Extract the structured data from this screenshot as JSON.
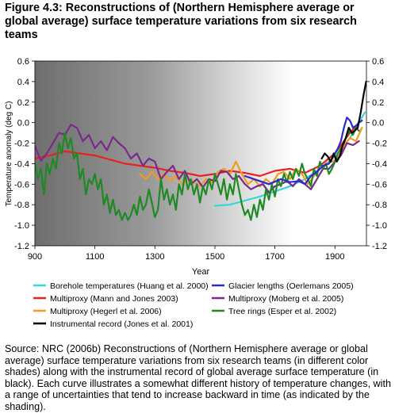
{
  "figure": {
    "title": "Figure 4.3: Reconstructions of (Northern Hemisphere average or global average) surface temperature variations from six research teams",
    "caption": "Source: NRC (2006b) Reconstructions of (Northern Hemisphere average or global average) surface temperature variations from six research teams (in different color shades) along with the instrumental record of global average surface temperature (in black). Each curve illustrates a somewhat different history of temperature changes, with a range of uncertainties that tend to increase backward in time (as indicated by the shading)."
  },
  "chart_data": {
    "type": "line",
    "title": "",
    "xlabel": "Year",
    "ylabel": "Temperature anomaly (deg C)",
    "xlim": [
      900,
      2005
    ],
    "ylim": [
      -1.2,
      0.6
    ],
    "x_ticks": [
      "900",
      "1100",
      "1300",
      "1500",
      "1700",
      "1900"
    ],
    "y_ticks": [
      "0.6",
      "0.4",
      "0.2",
      "0.0",
      "-0.2",
      "-0.4",
      "-0.6",
      "-0.8",
      "-1.0",
      "-1.2"
    ],
    "y_tick_values": [
      0.6,
      0.4,
      0.2,
      0.0,
      -0.2,
      -0.4,
      -0.6,
      -0.8,
      -1.0,
      -1.2
    ],
    "x_tick_values": [
      900,
      1100,
      1300,
      1500,
      1700,
      1900
    ],
    "background_shading": "uncertainty gradient from dark gray (900) to white (about 1750)",
    "legend_placement": "below plot, two columns",
    "series": [
      {
        "name": "Borehole temperatures (Huang et al. 2000)",
        "color": "#33d6dd",
        "points": [
          [
            1500,
            -0.81
          ],
          [
            1550,
            -0.8
          ],
          [
            1600,
            -0.76
          ],
          [
            1650,
            -0.72
          ],
          [
            1700,
            -0.67
          ],
          [
            1750,
            -0.62
          ],
          [
            1800,
            -0.55
          ],
          [
            1850,
            -0.45
          ],
          [
            1900,
            -0.33
          ],
          [
            1950,
            -0.15
          ],
          [
            2000,
            0.1
          ]
        ]
      },
      {
        "name": "Glacier lengths (Oerlemans 2005)",
        "color": "#2a2acc",
        "points": [
          [
            1600,
            -0.52
          ],
          [
            1640,
            -0.56
          ],
          [
            1680,
            -0.6
          ],
          [
            1720,
            -0.55
          ],
          [
            1750,
            -0.58
          ],
          [
            1780,
            -0.57
          ],
          [
            1800,
            -0.6
          ],
          [
            1820,
            -0.52
          ],
          [
            1840,
            -0.48
          ],
          [
            1860,
            -0.42
          ],
          [
            1880,
            -0.4
          ],
          [
            1900,
            -0.3
          ],
          [
            1910,
            -0.25
          ],
          [
            1920,
            -0.18
          ],
          [
            1930,
            -0.05
          ],
          [
            1940,
            0.05
          ],
          [
            1950,
            0.02
          ],
          [
            1960,
            -0.05
          ],
          [
            1970,
            -0.03
          ],
          [
            1980,
            0.0
          ],
          [
            1990,
            0.02
          ]
        ]
      },
      {
        "name": "Multiproxy (Mann and Jones 2003)",
        "color": "#e8231f",
        "points": [
          [
            900,
            -0.35
          ],
          [
            950,
            -0.32
          ],
          [
            1000,
            -0.28
          ],
          [
            1050,
            -0.3
          ],
          [
            1100,
            -0.32
          ],
          [
            1150,
            -0.36
          ],
          [
            1200,
            -0.4
          ],
          [
            1250,
            -0.42
          ],
          [
            1300,
            -0.44
          ],
          [
            1350,
            -0.47
          ],
          [
            1400,
            -0.49
          ],
          [
            1450,
            -0.52
          ],
          [
            1500,
            -0.5
          ],
          [
            1550,
            -0.47
          ],
          [
            1600,
            -0.49
          ],
          [
            1650,
            -0.52
          ],
          [
            1700,
            -0.47
          ],
          [
            1750,
            -0.45
          ],
          [
            1800,
            -0.49
          ],
          [
            1850,
            -0.42
          ],
          [
            1900,
            -0.3
          ],
          [
            1950,
            -0.1
          ],
          [
            1980,
            0.0
          ]
        ]
      },
      {
        "name": "Glacier lengths (Oerlemans 2005)",
        "color": "#2a2acc",
        "points": []
      },
      {
        "name": "Multiproxy (Moberg et al. 2005)",
        "color": "#7a2a8a",
        "points": [
          [
            900,
            -0.23
          ],
          [
            920,
            -0.37
          ],
          [
            940,
            -0.3
          ],
          [
            960,
            -0.2
          ],
          [
            980,
            -0.1
          ],
          [
            1000,
            -0.12
          ],
          [
            1020,
            -0.02
          ],
          [
            1040,
            -0.05
          ],
          [
            1060,
            -0.18
          ],
          [
            1080,
            -0.12
          ],
          [
            1100,
            -0.25
          ],
          [
            1120,
            -0.18
          ],
          [
            1140,
            -0.27
          ],
          [
            1160,
            -0.14
          ],
          [
            1180,
            -0.2
          ],
          [
            1200,
            -0.25
          ],
          [
            1220,
            -0.35
          ],
          [
            1240,
            -0.3
          ],
          [
            1260,
            -0.42
          ],
          [
            1280,
            -0.35
          ],
          [
            1300,
            -0.38
          ],
          [
            1320,
            -0.55
          ],
          [
            1340,
            -0.48
          ],
          [
            1360,
            -0.42
          ],
          [
            1380,
            -0.55
          ],
          [
            1400,
            -0.47
          ],
          [
            1420,
            -0.6
          ],
          [
            1440,
            -0.55
          ],
          [
            1460,
            -0.63
          ],
          [
            1480,
            -0.55
          ],
          [
            1500,
            -0.57
          ],
          [
            1520,
            -0.47
          ],
          [
            1540,
            -0.48
          ],
          [
            1560,
            -0.55
          ],
          [
            1580,
            -0.52
          ],
          [
            1600,
            -0.6
          ],
          [
            1620,
            -0.65
          ],
          [
            1640,
            -0.62
          ],
          [
            1660,
            -0.6
          ],
          [
            1680,
            -0.68
          ],
          [
            1700,
            -0.62
          ],
          [
            1720,
            -0.6
          ],
          [
            1740,
            -0.57
          ],
          [
            1760,
            -0.62
          ],
          [
            1780,
            -0.55
          ],
          [
            1800,
            -0.6
          ],
          [
            1820,
            -0.65
          ],
          [
            1840,
            -0.55
          ],
          [
            1860,
            -0.45
          ],
          [
            1880,
            -0.45
          ],
          [
            1900,
            -0.38
          ],
          [
            1920,
            -0.32
          ],
          [
            1940,
            -0.2
          ],
          [
            1960,
            -0.22
          ],
          [
            1980,
            -0.18
          ]
        ]
      },
      {
        "name": "Multiproxy (Hegerl et al. 2006)",
        "color": "#f39a1f",
        "points": [
          [
            1250,
            -0.5
          ],
          [
            1270,
            -0.55
          ],
          [
            1290,
            -0.48
          ],
          [
            1310,
            -0.55
          ],
          [
            1330,
            -0.5
          ],
          [
            1350,
            -0.57
          ],
          [
            1370,
            -0.52
          ],
          [
            1390,
            -0.6
          ],
          [
            1410,
            -0.55
          ],
          [
            1430,
            -0.58
          ],
          [
            1450,
            -0.62
          ],
          [
            1470,
            -0.55
          ],
          [
            1490,
            -0.58
          ],
          [
            1510,
            -0.48
          ],
          [
            1530,
            -0.45
          ],
          [
            1550,
            -0.5
          ],
          [
            1570,
            -0.38
          ],
          [
            1590,
            -0.5
          ],
          [
            1610,
            -0.6
          ],
          [
            1630,
            -0.55
          ],
          [
            1650,
            -0.62
          ],
          [
            1670,
            -0.55
          ],
          [
            1690,
            -0.6
          ],
          [
            1710,
            -0.5
          ],
          [
            1730,
            -0.48
          ],
          [
            1750,
            -0.55
          ],
          [
            1770,
            -0.45
          ],
          [
            1790,
            -0.5
          ],
          [
            1810,
            -0.6
          ],
          [
            1830,
            -0.52
          ],
          [
            1850,
            -0.45
          ],
          [
            1870,
            -0.4
          ],
          [
            1890,
            -0.38
          ],
          [
            1910,
            -0.35
          ],
          [
            1930,
            -0.22
          ],
          [
            1950,
            -0.15
          ],
          [
            1970,
            -0.18
          ],
          [
            1990,
            -0.05
          ]
        ]
      },
      {
        "name": "Tree rings (Esper et al. 2002)",
        "color": "#1f8a23",
        "points": [
          [
            900,
            -0.4
          ],
          [
            910,
            -0.55
          ],
          [
            920,
            -0.45
          ],
          [
            930,
            -0.7
          ],
          [
            940,
            -0.4
          ],
          [
            950,
            -0.5
          ],
          [
            960,
            -0.35
          ],
          [
            970,
            -0.45
          ],
          [
            980,
            -0.2
          ],
          [
            990,
            -0.3
          ],
          [
            1000,
            -0.1
          ],
          [
            1010,
            -0.25
          ],
          [
            1020,
            -0.15
          ],
          [
            1030,
            -0.35
          ],
          [
            1040,
            -0.3
          ],
          [
            1050,
            -0.55
          ],
          [
            1060,
            -0.45
          ],
          [
            1070,
            -0.7
          ],
          [
            1080,
            -0.55
          ],
          [
            1090,
            -0.6
          ],
          [
            1100,
            -0.5
          ],
          [
            1110,
            -0.65
          ],
          [
            1120,
            -0.55
          ],
          [
            1130,
            -0.8
          ],
          [
            1140,
            -0.7
          ],
          [
            1150,
            -0.88
          ],
          [
            1160,
            -0.75
          ],
          [
            1170,
            -0.9
          ],
          [
            1180,
            -0.85
          ],
          [
            1190,
            -0.95
          ],
          [
            1200,
            -0.88
          ],
          [
            1210,
            -0.95
          ],
          [
            1220,
            -0.9
          ],
          [
            1230,
            -0.8
          ],
          [
            1240,
            -0.9
          ],
          [
            1250,
            -0.72
          ],
          [
            1260,
            -0.85
          ],
          [
            1270,
            -0.8
          ],
          [
            1280,
            -0.65
          ],
          [
            1290,
            -0.78
          ],
          [
            1300,
            -0.92
          ],
          [
            1310,
            -0.85
          ],
          [
            1320,
            -0.55
          ],
          [
            1330,
            -0.75
          ],
          [
            1340,
            -0.65
          ],
          [
            1350,
            -0.8
          ],
          [
            1360,
            -0.7
          ],
          [
            1370,
            -0.85
          ],
          [
            1380,
            -0.6
          ],
          [
            1390,
            -0.7
          ],
          [
            1400,
            -0.5
          ],
          [
            1410,
            -0.65
          ],
          [
            1420,
            -0.55
          ],
          [
            1430,
            -0.7
          ],
          [
            1440,
            -0.6
          ],
          [
            1450,
            -0.78
          ],
          [
            1460,
            -0.62
          ],
          [
            1470,
            -0.7
          ],
          [
            1480,
            -0.55
          ],
          [
            1490,
            -0.65
          ],
          [
            1500,
            -0.5
          ],
          [
            1510,
            -0.6
          ],
          [
            1520,
            -0.7
          ],
          [
            1530,
            -0.55
          ],
          [
            1540,
            -0.75
          ],
          [
            1550,
            -0.6
          ],
          [
            1560,
            -0.7
          ],
          [
            1570,
            -0.5
          ],
          [
            1580,
            -0.65
          ],
          [
            1590,
            -0.8
          ],
          [
            1600,
            -0.9
          ],
          [
            1610,
            -0.85
          ],
          [
            1620,
            -0.95
          ],
          [
            1630,
            -0.8
          ],
          [
            1640,
            -0.92
          ],
          [
            1650,
            -0.75
          ],
          [
            1660,
            -0.85
          ],
          [
            1670,
            -0.65
          ],
          [
            1680,
            -0.75
          ],
          [
            1690,
            -0.6
          ],
          [
            1700,
            -0.72
          ],
          [
            1710,
            -0.55
          ],
          [
            1720,
            -0.62
          ],
          [
            1730,
            -0.5
          ],
          [
            1740,
            -0.58
          ],
          [
            1750,
            -0.48
          ],
          [
            1760,
            -0.55
          ],
          [
            1770,
            -0.45
          ],
          [
            1780,
            -0.52
          ],
          [
            1790,
            -0.4
          ],
          [
            1800,
            -0.5
          ],
          [
            1810,
            -0.55
          ],
          [
            1820,
            -0.62
          ],
          [
            1830,
            -0.45
          ],
          [
            1840,
            -0.52
          ],
          [
            1850,
            -0.38
          ],
          [
            1860,
            -0.45
          ],
          [
            1870,
            -0.4
          ],
          [
            1880,
            -0.5
          ],
          [
            1890,
            -0.45
          ],
          [
            1900,
            -0.38
          ],
          [
            1910,
            -0.3
          ],
          [
            1920,
            -0.25
          ],
          [
            1930,
            -0.2
          ],
          [
            1940,
            -0.12
          ],
          [
            1950,
            -0.08
          ],
          [
            1960,
            -0.12
          ],
          [
            1970,
            -0.05
          ],
          [
            1980,
            -0.08
          ]
        ]
      },
      {
        "name": "Instrumental record (Jones et al. 2001)",
        "color": "#000000",
        "points": [
          [
            1856,
            -0.35
          ],
          [
            1866,
            -0.3
          ],
          [
            1876,
            -0.33
          ],
          [
            1886,
            -0.38
          ],
          [
            1896,
            -0.3
          ],
          [
            1906,
            -0.38
          ],
          [
            1916,
            -0.33
          ],
          [
            1926,
            -0.22
          ],
          [
            1936,
            -0.15
          ],
          [
            1946,
            -0.05
          ],
          [
            1956,
            -0.1
          ],
          [
            1966,
            -0.08
          ],
          [
            1976,
            -0.05
          ],
          [
            1986,
            0.1
          ],
          [
            1996,
            0.28
          ],
          [
            2004,
            0.4
          ]
        ]
      }
    ]
  },
  "legend": {
    "left": [
      {
        "label": "Borehole temperatures (Huang et al. 2000)",
        "color": "#33d6dd"
      },
      {
        "label": "Multiproxy (Mann and Jones 2003)",
        "color": "#e8231f"
      },
      {
        "label": "Multiproxy (Hegerl et al. 2006)",
        "color": "#f39a1f"
      },
      {
        "label": "Instrumental record (Jones et al. 2001)",
        "color": "#000000"
      }
    ],
    "right": [
      {
        "label": "Glacier lengths (Oerlemans 2005)",
        "color": "#2a2acc"
      },
      {
        "label": "Multiproxy (Moberg et al. 2005)",
        "color": "#7a2a8a"
      },
      {
        "label": "Tree rings (Esper et al. 2002)",
        "color": "#1f8a23"
      }
    ]
  }
}
